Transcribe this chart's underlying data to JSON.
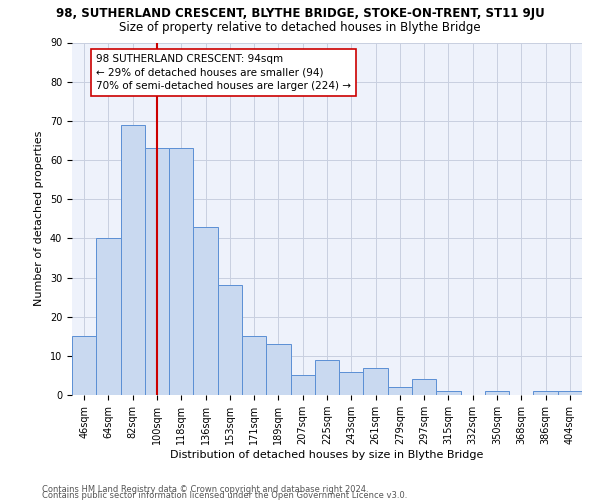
{
  "title_line1": "98, SUTHERLAND CRESCENT, BLYTHE BRIDGE, STOKE-ON-TRENT, ST11 9JU",
  "title_line2": "Size of property relative to detached houses in Blythe Bridge",
  "xlabel": "Distribution of detached houses by size in Blythe Bridge",
  "ylabel": "Number of detached properties",
  "categories": [
    "46sqm",
    "64sqm",
    "82sqm",
    "100sqm",
    "118sqm",
    "136sqm",
    "153sqm",
    "171sqm",
    "189sqm",
    "207sqm",
    "225sqm",
    "243sqm",
    "261sqm",
    "279sqm",
    "297sqm",
    "315sqm",
    "332sqm",
    "350sqm",
    "368sqm",
    "386sqm",
    "404sqm"
  ],
  "values": [
    15,
    40,
    69,
    63,
    63,
    43,
    28,
    15,
    13,
    5,
    9,
    6,
    7,
    2,
    4,
    1,
    0,
    1,
    0,
    1,
    1
  ],
  "bar_color": "#c9d9f0",
  "bar_edge_color": "#5b8fd4",
  "vline_x": 3,
  "vline_color": "#cc0000",
  "annotation_line1": "98 SUTHERLAND CRESCENT: 94sqm",
  "annotation_line2": "← 29% of detached houses are smaller (94)",
  "annotation_line3": "70% of semi-detached houses are larger (224) →",
  "annotation_box_color": "#ffffff",
  "annotation_box_edge": "#cc0000",
  "ylim": [
    0,
    90
  ],
  "yticks": [
    0,
    10,
    20,
    30,
    40,
    50,
    60,
    70,
    80,
    90
  ],
  "footer_line1": "Contains HM Land Registry data © Crown copyright and database right 2024.",
  "footer_line2": "Contains public sector information licensed under the Open Government Licence v3.0.",
  "background_color": "#eef2fb",
  "grid_color": "#c8cfe0",
  "title1_fontsize": 8.5,
  "title2_fontsize": 8.5,
  "axis_label_fontsize": 8,
  "tick_fontsize": 7,
  "footer_fontsize": 6,
  "annotation_fontsize": 7.5
}
